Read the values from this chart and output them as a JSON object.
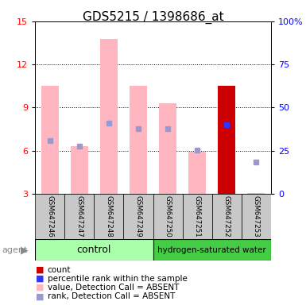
{
  "title": "GDS5215 / 1398686_at",
  "samples": [
    "GSM647246",
    "GSM647247",
    "GSM647248",
    "GSM647249",
    "GSM647250",
    "GSM647251",
    "GSM647252",
    "GSM647253"
  ],
  "ylim_left": [
    3,
    15
  ],
  "ylim_right": [
    0,
    100
  ],
  "yticks_left": [
    3,
    6,
    9,
    12,
    15
  ],
  "yticks_right": [
    0,
    25,
    50,
    75,
    100
  ],
  "yticklabels_right": [
    "0",
    "25",
    "50",
    "75",
    "100%"
  ],
  "bar_values": [
    10.5,
    6.3,
    13.8,
    10.5,
    9.3,
    5.9,
    10.5,
    3.05
  ],
  "bar_colors": [
    "#FFB6C1",
    "#FFB6C1",
    "#FFB6C1",
    "#FFB6C1",
    "#FFB6C1",
    "#FFB6C1",
    "#CC0000",
    "#FFB6C1"
  ],
  "rank_squares": [
    6.7,
    6.3,
    7.9,
    7.5,
    7.5,
    6.05,
    7.8,
    5.2
  ],
  "rank_colors": [
    "#9999CC",
    "#9999CC",
    "#9999CC",
    "#9999CC",
    "#9999CC",
    "#9999CC",
    "#3333FF",
    "#9999CC"
  ],
  "grid_lines": [
    6,
    9,
    12
  ],
  "control_color_light": "#AAFFAA",
  "control_color_dark": "#44CC44",
  "legend_items": [
    {
      "label": "count",
      "color": "#CC0000"
    },
    {
      "label": "percentile rank within the sample",
      "color": "#3333FF"
    },
    {
      "label": "value, Detection Call = ABSENT",
      "color": "#FFB6C1"
    },
    {
      "label": "rank, Detection Call = ABSENT",
      "color": "#9999CC"
    }
  ],
  "title_fontsize": 11,
  "tick_fontsize": 8,
  "label_fontsize": 7,
  "legend_fontsize": 7.5
}
